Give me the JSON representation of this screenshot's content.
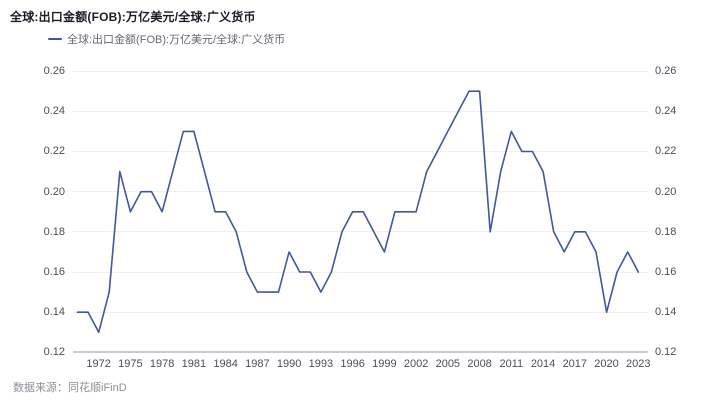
{
  "page": {
    "title": "全球:出口金额(FOB):万亿美元/全球:广义货币",
    "source_note": "数据来源：同花顺iFinD"
  },
  "legend": {
    "swatch": "line-dash",
    "label": "全球:出口金额(FOB):万亿美元/全球:广义货币"
  },
  "colors": {
    "background": "#ffffff",
    "line": "#41579E",
    "title_text": "#1b1c26",
    "legend_text": "#636875",
    "axis_text": "#4b4d58",
    "gridline": "#efeff6",
    "axis_line": "#c5cad8",
    "source_text": "#8e8e98"
  },
  "chart_data": {
    "type": "line",
    "title": "全球:出口金额(FOB):万亿美元/全球:广义货币",
    "xlabel": "",
    "ylabel": "",
    "ylim": [
      0.12,
      0.26
    ],
    "yticks": [
      0.12,
      0.14,
      0.16,
      0.18,
      0.2,
      0.22,
      0.24,
      0.26
    ],
    "xticks": [
      1972,
      1975,
      1978,
      1981,
      1984,
      1987,
      1990,
      1993,
      1996,
      1999,
      2002,
      2005,
      2008,
      2011,
      2014,
      2017,
      2020,
      2023
    ],
    "grid": "horizontal-only",
    "legend_position": "top-left",
    "dual_y_axis": true,
    "x": [
      1970,
      1971,
      1972,
      1973,
      1974,
      1975,
      1976,
      1977,
      1978,
      1979,
      1980,
      1981,
      1982,
      1983,
      1984,
      1985,
      1986,
      1987,
      1988,
      1989,
      1990,
      1991,
      1992,
      1993,
      1994,
      1995,
      1996,
      1997,
      1998,
      1999,
      2000,
      2001,
      2002,
      2003,
      2004,
      2005,
      2006,
      2007,
      2008,
      2009,
      2010,
      2011,
      2012,
      2013,
      2014,
      2015,
      2016,
      2017,
      2018,
      2019,
      2020,
      2021,
      2022,
      2023
    ],
    "series": [
      {
        "name": "全球:出口金额(FOB):万亿美元/全球:广义货币",
        "values": [
          0.14,
          0.14,
          0.13,
          0.15,
          0.21,
          0.19,
          0.2,
          0.2,
          0.19,
          0.21,
          0.23,
          0.23,
          0.21,
          0.19,
          0.19,
          0.18,
          0.16,
          0.15,
          0.15,
          0.15,
          0.17,
          0.16,
          0.16,
          0.15,
          0.16,
          0.18,
          0.19,
          0.19,
          0.18,
          0.17,
          0.19,
          0.19,
          0.19,
          0.21,
          0.22,
          0.23,
          0.24,
          0.25,
          0.25,
          0.18,
          0.21,
          0.23,
          0.22,
          0.22,
          0.21,
          0.18,
          0.17,
          0.18,
          0.18,
          0.17,
          0.14,
          0.16,
          0.17,
          0.16
        ]
      }
    ]
  }
}
